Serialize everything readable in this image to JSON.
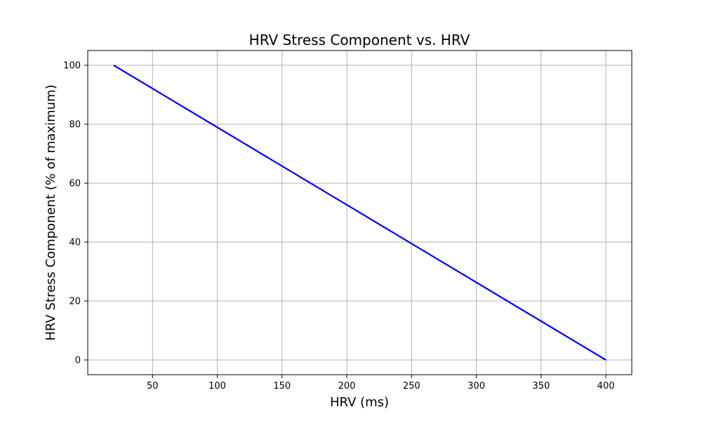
{
  "chart_data": {
    "type": "line",
    "title": "HRV Stress Component vs. HRV",
    "xlabel": "HRV (ms)",
    "ylabel": "HRV Stress Component (% of maximum)",
    "xlim": [
      0,
      420
    ],
    "ylim": [
      -5,
      105
    ],
    "xticks": [
      50,
      100,
      150,
      200,
      250,
      300,
      350,
      400
    ],
    "yticks": [
      0,
      20,
      40,
      60,
      80,
      100
    ],
    "grid": true,
    "series": [
      {
        "name": "HRV Stress Component",
        "color": "#0000ee",
        "x": [
          20,
          400
        ],
        "y": [
          100,
          0
        ]
      }
    ]
  }
}
